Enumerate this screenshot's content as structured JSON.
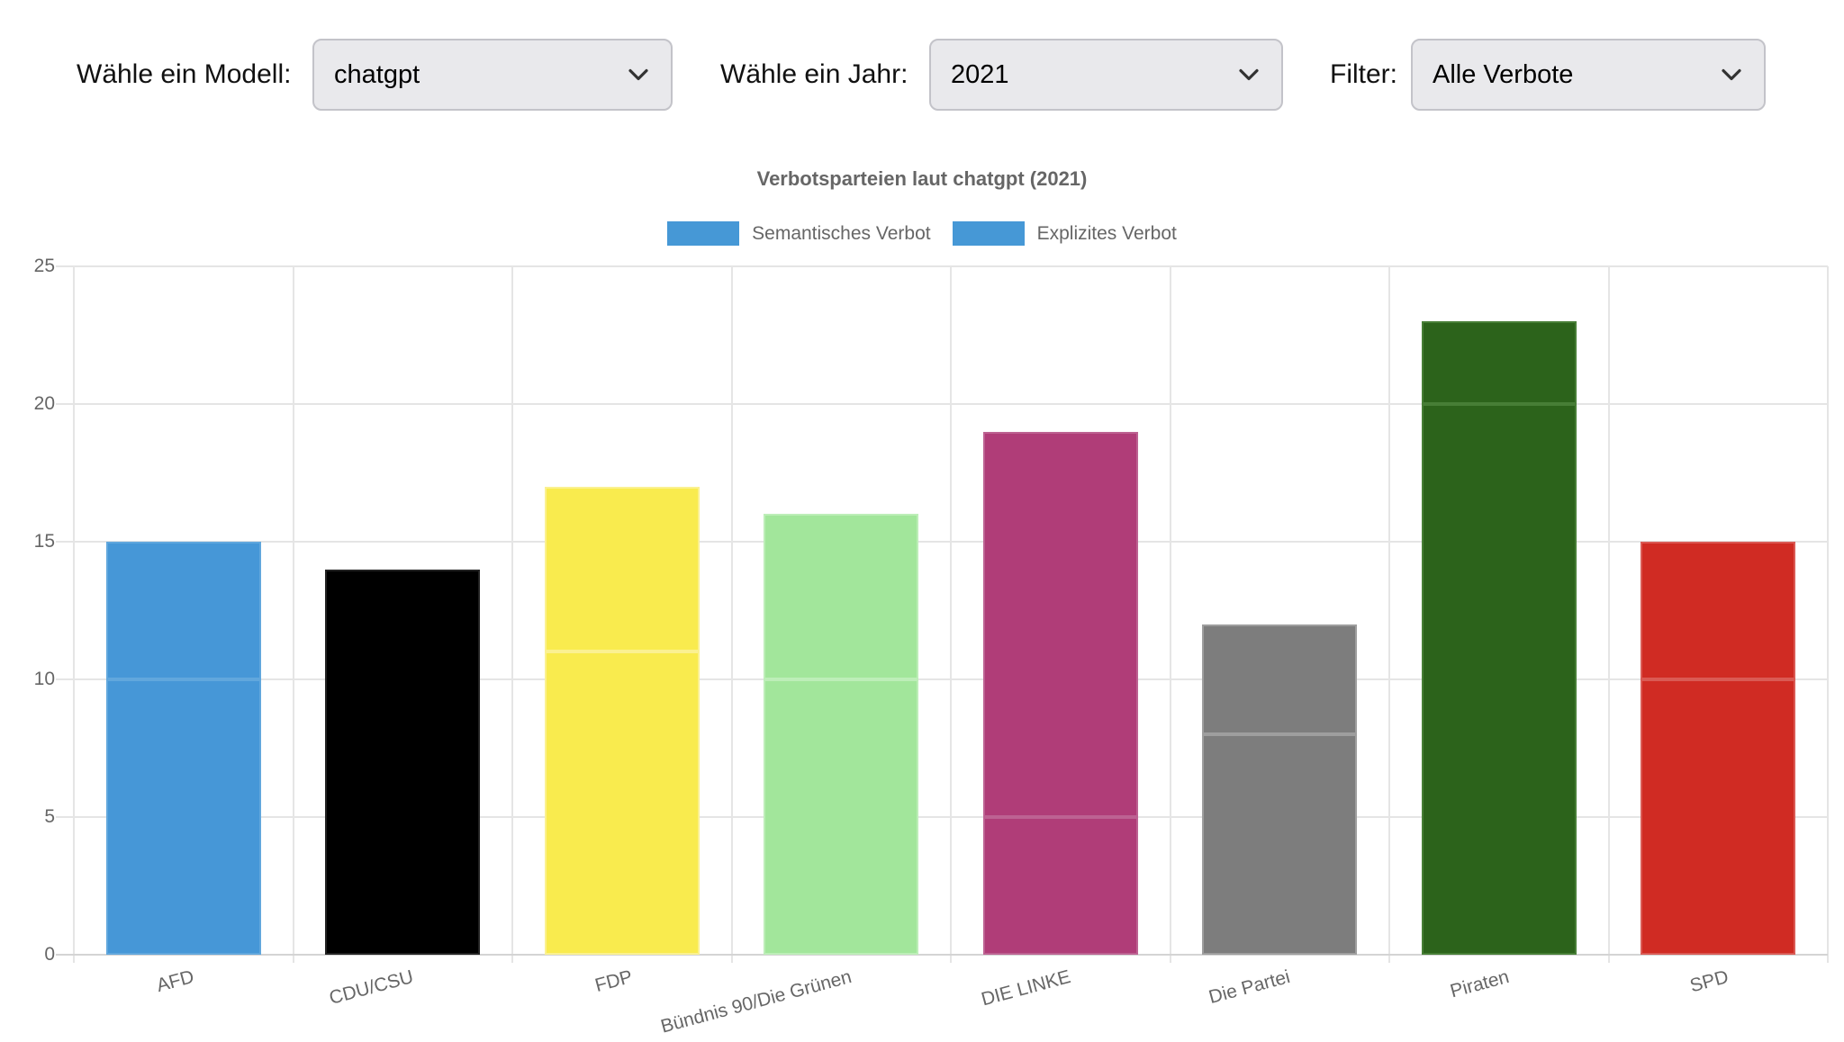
{
  "controls": {
    "model": {
      "label": "Wähle ein Modell:",
      "value": "chatgpt"
    },
    "year": {
      "label": "Wähle ein Jahr:",
      "value": "2021"
    },
    "filter": {
      "label": "Filter:",
      "value": "Alle Verbote"
    }
  },
  "chart_data": {
    "type": "bar",
    "stacked": true,
    "title": "Verbotsparteien laut chatgpt (2021)",
    "categories": [
      "AFD",
      "CDU/CSU",
      "FDP",
      "Bündnis 90/Die Grünen",
      "DIE LINKE",
      "Die Partei",
      "Piraten",
      "SPD"
    ],
    "series": [
      {
        "name": "Semantisches Verbot",
        "values": [
          10,
          14,
          11,
          10,
          5,
          8,
          20,
          10
        ]
      },
      {
        "name": "Explizites Verbot",
        "values": [
          5,
          0,
          6,
          6,
          14,
          4,
          3,
          5
        ]
      }
    ],
    "totals": [
      15,
      14,
      17,
      16,
      19,
      12,
      23,
      15
    ],
    "category_colors": [
      "#4697d7",
      "#000000",
      "#f9eb4e",
      "#a2e69b",
      "#b03d78",
      "#7d7d7d",
      "#2c631b",
      "#d02b23"
    ],
    "category_border_colors": [
      "#61a7dd",
      "#222222",
      "#fbf190",
      "#bdeeb8",
      "#bd6292",
      "#9e9e9e",
      "#477e36",
      "#da5a54"
    ],
    "legend_swatch_color": "#4698d6",
    "xlabel": "",
    "ylabel": "",
    "ylim": [
      0,
      25
    ],
    "y_ticks": [
      0,
      5,
      10,
      15,
      20,
      25
    ],
    "grid": true,
    "legend_position": "top"
  }
}
